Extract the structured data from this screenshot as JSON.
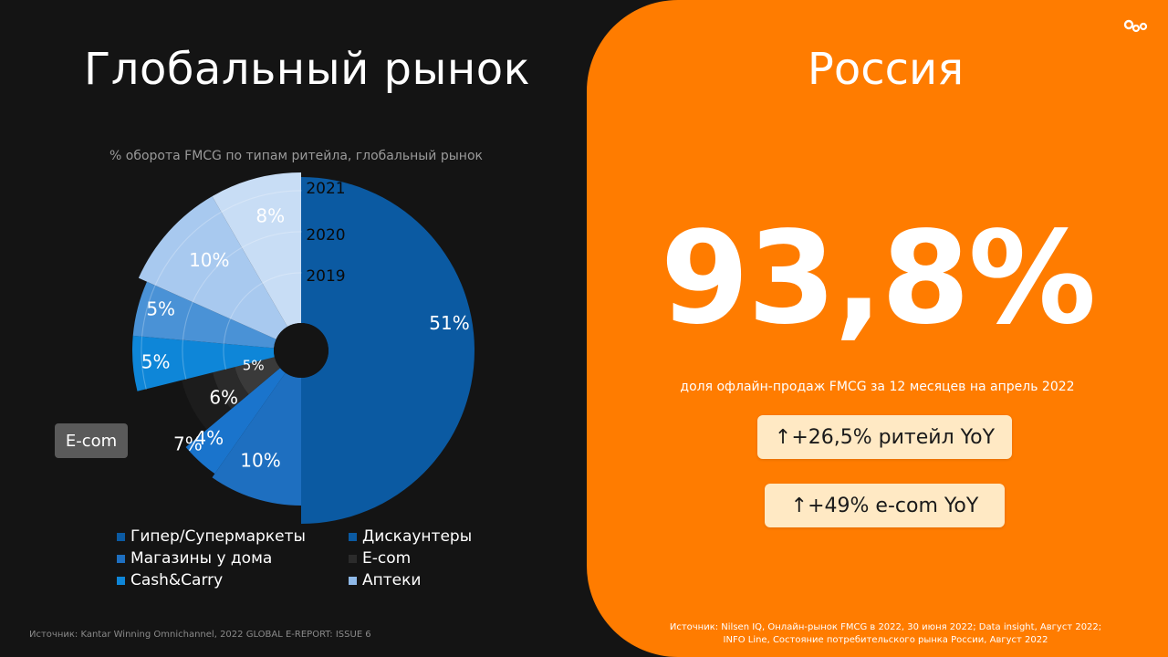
{
  "left": {
    "title": "Глобальный рынок",
    "subtitle": "% оборота FMCG по типам ритейла, глобальный рынок",
    "ecom_badge": "E-com",
    "source": "Источник: Kantar Winning Omnichannel, 2022 GLOBAL E-REPORT: ISSUE 6"
  },
  "right": {
    "title": "Россия",
    "big_number": "93,8%",
    "caption": "доля офлайн-продаж FMCG  за 12 месяцев на апрель 2022",
    "chip_retail": "↑+26,5% ритейл YoY",
    "chip_ecom": "↑+49% e-com YoY",
    "source_line1": "Источник: Nilsen IQ, Онлайн-рынок FMCG в 2022, 30 июня 2022; Data insight, Август 2022;",
    "source_line2": "INFO Line, Состояние потребительского рынка России, Август 2022",
    "accent_color": "#ff7c00",
    "logo_icon": "brand-logo-icon"
  },
  "chart_data": {
    "type": "pie",
    "variant": "polar-area (rose) with three concentric year rings",
    "title": "",
    "subtitle": "% оборота FMCG по типам ритейла, глобальный рынок",
    "rings": [
      "2019",
      "2020",
      "2021"
    ],
    "segments": [
      {
        "name": "Гипер/Супермаркеты",
        "value": 51,
        "label": "51%",
        "color": "#0b5aa2"
      },
      {
        "name": "Магазины у дома",
        "value": 10,
        "label": "10%",
        "color": "#1e6fc0"
      },
      {
        "name": "Дискаунтеры",
        "value": 4,
        "label": "4%",
        "color": "#1a74cc"
      },
      {
        "name": "E-com",
        "value": 7,
        "label": "7%",
        "color": "#202020",
        "ring_labels": [
          "5%",
          "6%",
          "7%"
        ]
      },
      {
        "name": "Cash&Carry",
        "value": 5,
        "label": "5%",
        "color": "#0e86d8"
      },
      {
        "name": "Cash&Carry",
        "value": 5,
        "label": "5%",
        "color": "#4a92d6"
      },
      {
        "name": "Аптеки",
        "value": 10,
        "label": "10%",
        "color": "#a8c9ef"
      },
      {
        "name": "Аптеки",
        "value": 8,
        "label": "8%",
        "color": "#c8ddf5"
      }
    ],
    "legend": [
      {
        "label": "Гипер/Супермаркеты",
        "color": "#0b5aa2"
      },
      {
        "label": "Дискаунтеры",
        "color": "#0b5aa2"
      },
      {
        "label": "Магазины у дома",
        "color": "#1e6fc0"
      },
      {
        "label": "E-com",
        "color": "#2b2b2b"
      },
      {
        "label": "Cash&Carry",
        "color": "#0e86d8"
      },
      {
        "label": "Аптеки",
        "color": "#8fb9e8"
      }
    ],
    "legend_placement": "bottom",
    "grid": false
  }
}
